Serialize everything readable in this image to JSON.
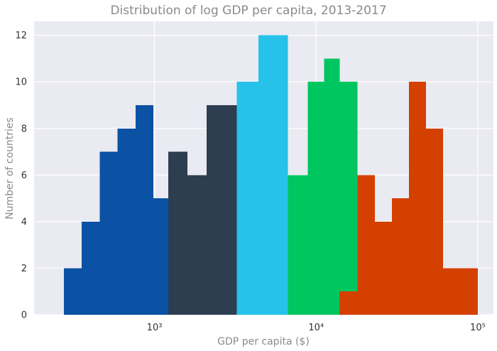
{
  "chart_data": {
    "type": "bar",
    "title": "Distribution of log GDP per capita, 2013-2017",
    "xlabel": "GDP per capita ($)",
    "ylabel": "Number of countries",
    "x_scale": "log10",
    "xlim": [
      180,
      125000
    ],
    "ylim": [
      0,
      12.6
    ],
    "grid": true,
    "x_ticks": [
      {
        "value": 1000,
        "label": "10³"
      },
      {
        "value": 10000,
        "label": "10⁴"
      },
      {
        "value": 100000,
        "label": "10⁵"
      }
    ],
    "y_ticks": [
      0,
      2,
      4,
      6,
      8,
      10,
      12
    ],
    "series": [
      {
        "color": "#0b52a4",
        "bins": [
          {
            "x0": 275,
            "x1": 355,
            "count": 2
          },
          {
            "x0": 355,
            "x1": 458,
            "count": 4
          },
          {
            "x0": 458,
            "x1": 592,
            "count": 7
          },
          {
            "x0": 592,
            "x1": 764,
            "count": 8
          },
          {
            "x0": 764,
            "x1": 986,
            "count": 9
          },
          {
            "x0": 986,
            "x1": 1215,
            "count": 5
          }
        ]
      },
      {
        "color": "#2e3e51",
        "bins": [
          {
            "x0": 1215,
            "x1": 1600,
            "count": 7
          },
          {
            "x0": 1600,
            "x1": 2100,
            "count": 6
          },
          {
            "x0": 2100,
            "x1": 3225,
            "count": 9
          }
        ]
      },
      {
        "color": "#26c2ea",
        "bins": [
          {
            "x0": 3225,
            "x1": 4400,
            "count": 10
          },
          {
            "x0": 4400,
            "x1": 6700,
            "count": 12
          }
        ]
      },
      {
        "color": "#00c65f",
        "bins": [
          {
            "x0": 6700,
            "x1": 8900,
            "count": 6
          },
          {
            "x0": 8900,
            "x1": 11200,
            "count": 10
          },
          {
            "x0": 11200,
            "x1": 14000,
            "count": 11
          },
          {
            "x0": 14000,
            "x1": 18000,
            "count": 10
          }
        ]
      },
      {
        "color": "#d44000",
        "bins": [
          {
            "x0": 13900,
            "x1": 18000,
            "count": 1
          },
          {
            "x0": 18000,
            "x1": 23100,
            "count": 6
          },
          {
            "x0": 23100,
            "x1": 29500,
            "count": 4
          },
          {
            "x0": 29500,
            "x1": 37500,
            "count": 5
          },
          {
            "x0": 37500,
            "x1": 47900,
            "count": 10
          },
          {
            "x0": 47900,
            "x1": 61000,
            "count": 8
          },
          {
            "x0": 61000,
            "x1": 78000,
            "count": 2
          },
          {
            "x0": 78000,
            "x1": 100000,
            "count": 2
          }
        ]
      }
    ]
  },
  "colors": {
    "plot_background": "#eaeaf2",
    "grid": "#ffffff"
  }
}
